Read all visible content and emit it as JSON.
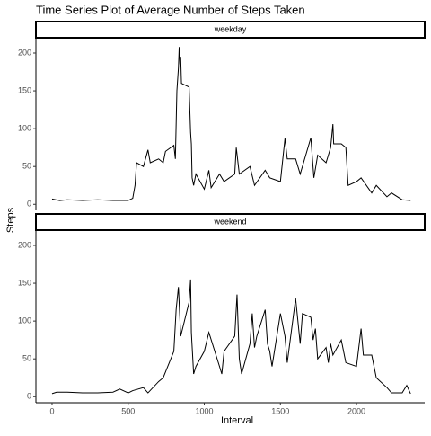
{
  "title": "Time Series Plot of Average Number of Steps Taken",
  "x_label": "Interval",
  "y_label": "Steps",
  "chart_data": [
    {
      "type": "line",
      "title": "weekday",
      "color": "#000000",
      "x": [
        0,
        50,
        100,
        200,
        300,
        400,
        500,
        530,
        545,
        555,
        600,
        630,
        645,
        700,
        730,
        745,
        800,
        810,
        820,
        830,
        835,
        840,
        845,
        850,
        900,
        910,
        915,
        920,
        930,
        945,
        1000,
        1030,
        1045,
        1100,
        1130,
        1200,
        1210,
        1230,
        1300,
        1330,
        1400,
        1430,
        1500,
        1530,
        1545,
        1600,
        1630,
        1700,
        1720,
        1745,
        1800,
        1830,
        1845,
        1850,
        1900,
        1930,
        1945,
        2000,
        2030,
        2100,
        2130,
        2200,
        2230,
        2300,
        2355
      ],
      "values": [
        7,
        5,
        6,
        5,
        6,
        5,
        5,
        8,
        25,
        55,
        50,
        72,
        55,
        60,
        55,
        70,
        78,
        60,
        150,
        180,
        208,
        185,
        195,
        160,
        155,
        95,
        80,
        35,
        25,
        40,
        20,
        45,
        22,
        40,
        30,
        40,
        75,
        40,
        50,
        25,
        45,
        35,
        30,
        87,
        60,
        60,
        40,
        88,
        35,
        65,
        55,
        75,
        106,
        80,
        80,
        75,
        25,
        30,
        35,
        15,
        25,
        10,
        15,
        6,
        5
      ],
      "xlim": [
        -106,
        2448
      ],
      "ylim": [
        -8,
        219
      ],
      "yticks": [
        0,
        50,
        100,
        150,
        200
      ]
    },
    {
      "type": "line",
      "title": "weekend",
      "color": "#000000",
      "x": [
        0,
        30,
        100,
        200,
        300,
        400,
        445,
        500,
        530,
        600,
        630,
        700,
        730,
        800,
        815,
        830,
        845,
        900,
        910,
        915,
        930,
        945,
        1000,
        1030,
        1100,
        1115,
        1130,
        1200,
        1215,
        1230,
        1245,
        1300,
        1315,
        1330,
        1345,
        1400,
        1415,
        1430,
        1445,
        1500,
        1530,
        1545,
        1600,
        1630,
        1645,
        1700,
        1715,
        1730,
        1745,
        1800,
        1815,
        1830,
        1845,
        1900,
        1930,
        2000,
        2030,
        2045,
        2100,
        2130,
        2200,
        2230,
        2300,
        2330,
        2355
      ],
      "values": [
        4,
        6,
        6,
        5,
        5,
        6,
        10,
        5,
        8,
        12,
        5,
        20,
        25,
        60,
        115,
        145,
        80,
        125,
        155,
        85,
        30,
        40,
        60,
        85,
        40,
        30,
        60,
        80,
        135,
        50,
        30,
        70,
        110,
        65,
        80,
        115,
        70,
        60,
        40,
        110,
        80,
        45,
        130,
        70,
        110,
        105,
        75,
        90,
        50,
        65,
        45,
        70,
        55,
        75,
        45,
        40,
        90,
        55,
        55,
        25,
        12,
        5,
        5,
        15,
        4
      ],
      "xlim": [
        -106,
        2448
      ],
      "ylim": [
        -8,
        219
      ],
      "yticks": [
        0,
        50,
        100,
        150,
        200
      ],
      "xticks": [
        0,
        500,
        1000,
        1500,
        2000
      ]
    }
  ]
}
